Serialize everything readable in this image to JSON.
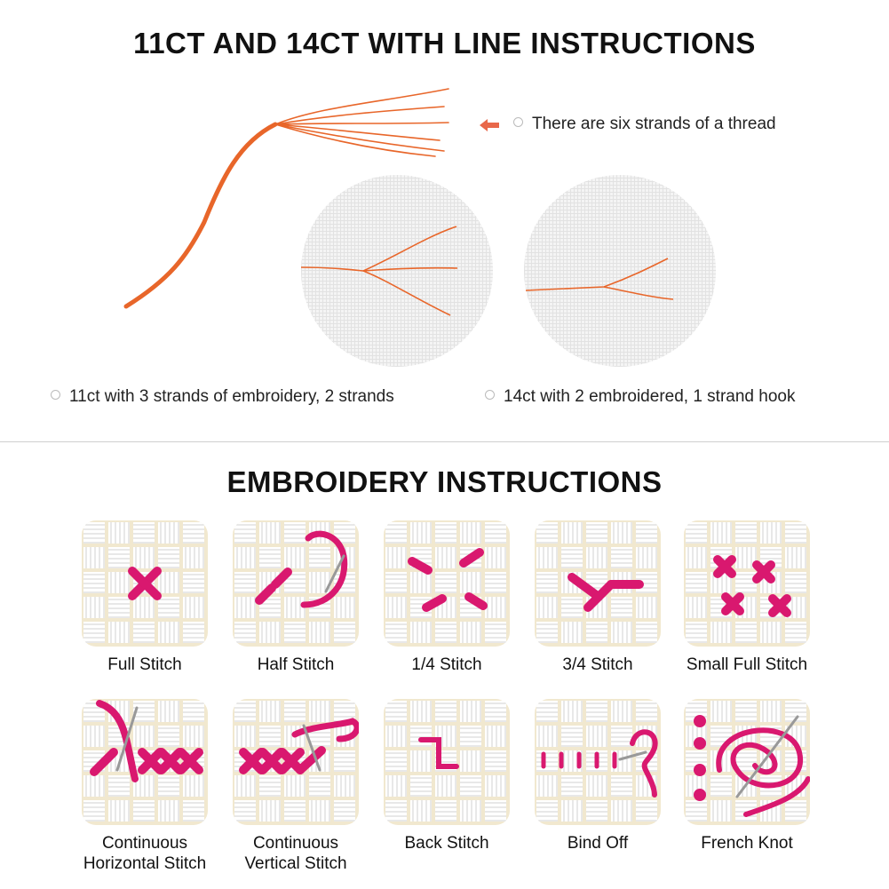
{
  "section1": {
    "title": "11CT AND 14CT WITH LINE INSTRUCTIONS",
    "thread_note": "There are six strands of a thread",
    "caption_11ct": "11ct with 3 strands of embroidery, 2 strands",
    "caption_14ct": "14ct with 2 embroidered, 1 strand hook"
  },
  "section2": {
    "title": "EMBROIDERY INSTRUCTIONS",
    "stitches": [
      {
        "label": "Full Stitch",
        "icon": "full-stitch"
      },
      {
        "label": "Half Stitch",
        "icon": "half-stitch"
      },
      {
        "label": "1/4 Stitch",
        "icon": "quarter-stitch"
      },
      {
        "label": "3/4 Stitch",
        "icon": "three-quarter-stitch"
      },
      {
        "label": "Small Full Stitch",
        "icon": "small-full-stitch"
      },
      {
        "label": "Continuous\nHorizontal Stitch",
        "icon": "continuous-horizontal-stitch"
      },
      {
        "label": "Continuous\nVertical Stitch",
        "icon": "continuous-vertical-stitch"
      },
      {
        "label": "Back Stitch",
        "icon": "back-stitch"
      },
      {
        "label": "Bind Off",
        "icon": "bind-off"
      },
      {
        "label": "French Knot",
        "icon": "french-knot"
      }
    ]
  },
  "colors": {
    "thread": "#e8662a",
    "stitch": "#d9186f",
    "arrow": "#e8684a",
    "fabric": "#ededed",
    "fabric_gap": "#f1e8cf"
  }
}
